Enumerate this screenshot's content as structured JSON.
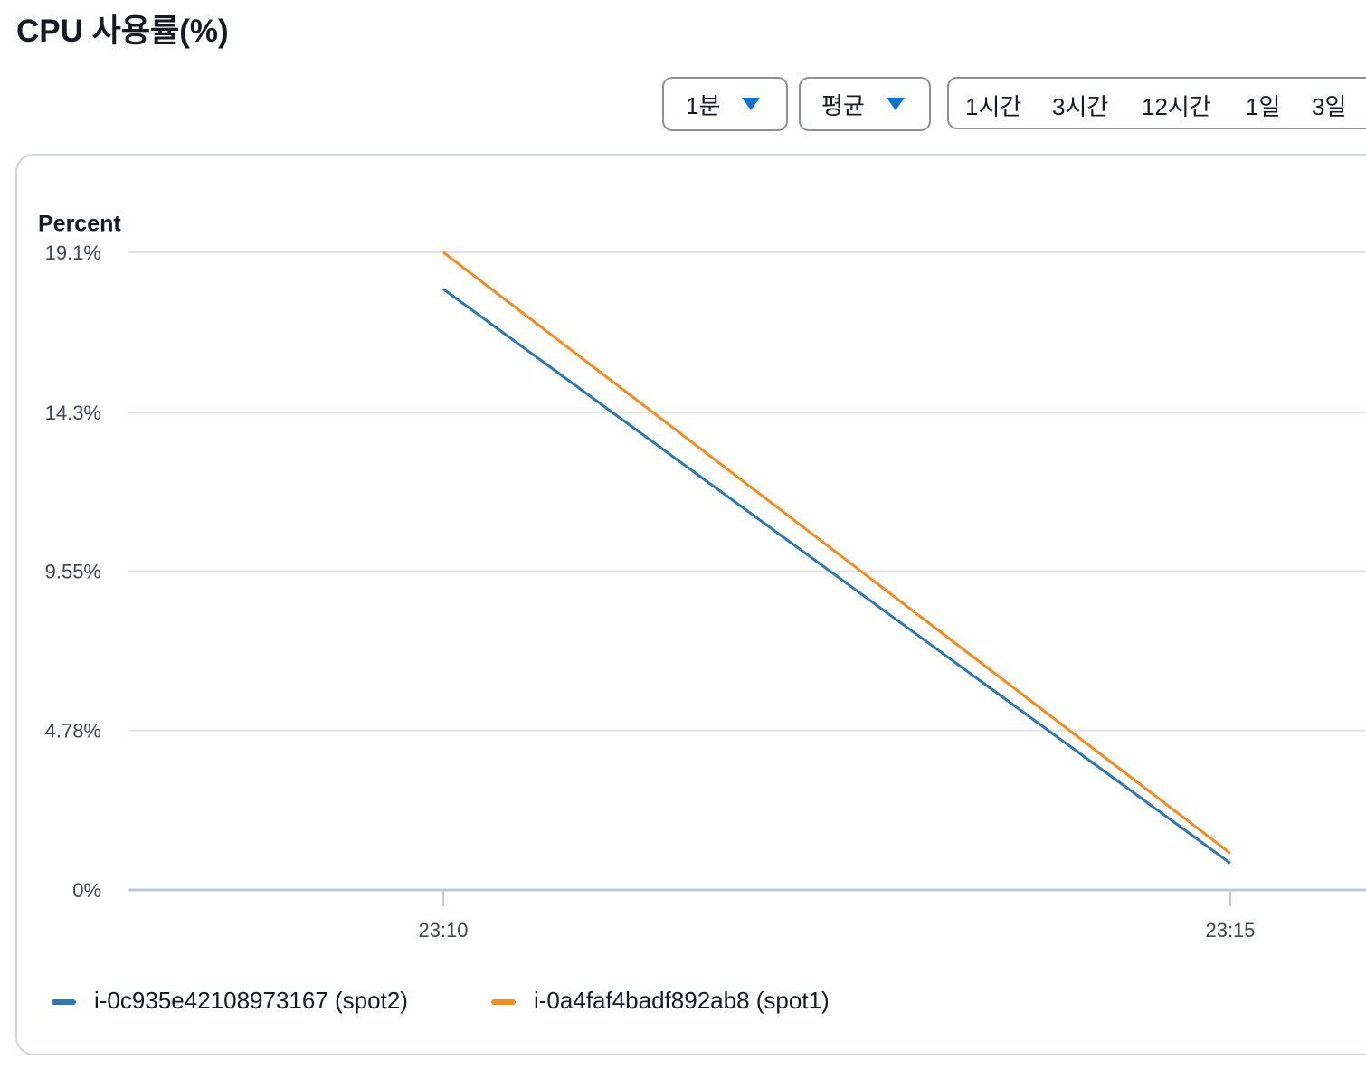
{
  "header": {
    "title": "CPU 사용률(%)",
    "period": "1분",
    "statistic": "평균",
    "ranges": [
      "1시간",
      "3시간",
      "12시간",
      "1일",
      "3일"
    ]
  },
  "chart_data": {
    "type": "line",
    "y_label": "Percent",
    "x": [
      "23:10",
      "23:15"
    ],
    "xticks": [
      "23:10",
      "23:15"
    ],
    "xlim": [
      "23:08",
      "23:16"
    ],
    "ylim": [
      0,
      19.1
    ],
    "yticks": [
      {
        "value": 0,
        "label": "0%"
      },
      {
        "value": 4.78,
        "label": "4.78%"
      },
      {
        "value": 9.55,
        "label": "9.55%"
      },
      {
        "value": 14.3,
        "label": "14.3%"
      },
      {
        "value": 19.1,
        "label": "19.1%"
      }
    ],
    "grid": true,
    "series": [
      {
        "name": "i-0c935e42108973167 (spot2)",
        "color": "#2e78b2",
        "values": [
          18.0,
          0.8
        ]
      },
      {
        "name": "i-0a4faf4badf892ab8 (spot1)",
        "color": "#f58a1f",
        "values": [
          19.1,
          1.1
        ]
      }
    ]
  }
}
